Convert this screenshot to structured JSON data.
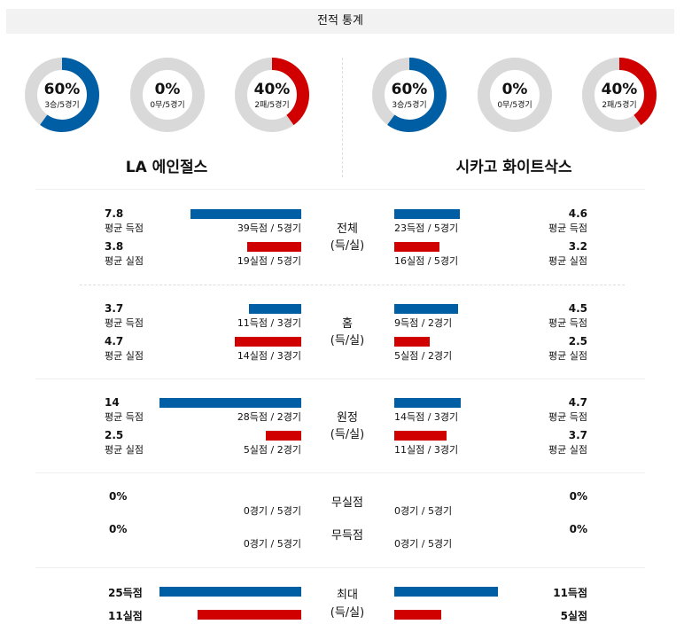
{
  "title": "전적 통계",
  "colors": {
    "score": "#005ea5",
    "concede": "#d00000",
    "track": "#d9d9d9"
  },
  "teams": [
    {
      "name": "LA 에인절스",
      "donuts": [
        {
          "pct": "60%",
          "sub": "3승/5경기",
          "value": 60,
          "color": "#005ea5"
        },
        {
          "pct": "0%",
          "sub": "0무/5경기",
          "value": 0,
          "color": "#005ea5"
        },
        {
          "pct": "40%",
          "sub": "2패/5경기",
          "value": 40,
          "color": "#d00000"
        }
      ]
    },
    {
      "name": "시카고 화이트삭스",
      "donuts": [
        {
          "pct": "60%",
          "sub": "3승/5경기",
          "value": 60,
          "color": "#005ea5"
        },
        {
          "pct": "0%",
          "sub": "0무/5경기",
          "value": 0,
          "color": "#005ea5"
        },
        {
          "pct": "40%",
          "sub": "2패/5경기",
          "value": 40,
          "color": "#d00000"
        }
      ]
    }
  ],
  "sections": [
    {
      "label1": "전체",
      "label2": "(득/실)",
      "rows": [
        {
          "left": {
            "val": "7.8",
            "lbl": "평균 득점",
            "cap": "39득점 / 5경기",
            "bar": 78
          },
          "right": {
            "val": "4.6",
            "lbl": "평균 득점",
            "cap": "23득점 / 5경기",
            "bar": 46
          },
          "type": "score"
        },
        {
          "left": {
            "val": "3.8",
            "lbl": "평균 실점",
            "cap": "19실점 / 5경기",
            "bar": 38
          },
          "right": {
            "val": "3.2",
            "lbl": "평균 실점",
            "cap": "16실점 / 5경기",
            "bar": 32
          },
          "type": "concede"
        }
      ]
    },
    {
      "label1": "홈",
      "label2": "(득/실)",
      "rows": [
        {
          "left": {
            "val": "3.7",
            "lbl": "평균 득점",
            "cap": "11득점 / 3경기",
            "bar": 37
          },
          "right": {
            "val": "4.5",
            "lbl": "평균 득점",
            "cap": "9득점 / 2경기",
            "bar": 45
          },
          "type": "score"
        },
        {
          "left": {
            "val": "4.7",
            "lbl": "평균 실점",
            "cap": "14실점 / 3경기",
            "bar": 47
          },
          "right": {
            "val": "2.5",
            "lbl": "평균 실점",
            "cap": "5실점 / 2경기",
            "bar": 25
          },
          "type": "concede"
        }
      ]
    },
    {
      "label1": "원정",
      "label2": "(득/실)",
      "rows": [
        {
          "left": {
            "val": "14",
            "lbl": "평균 득점",
            "cap": "28득점 / 2경기",
            "bar": 100
          },
          "right": {
            "val": "4.7",
            "lbl": "평균 득점",
            "cap": "14득점 / 3경기",
            "bar": 47
          },
          "type": "score"
        },
        {
          "left": {
            "val": "2.5",
            "lbl": "평균 실점",
            "cap": "5실점 / 2경기",
            "bar": 25
          },
          "right": {
            "val": "3.7",
            "lbl": "평균 실점",
            "cap": "11실점 / 3경기",
            "bar": 37
          },
          "type": "concede"
        }
      ]
    }
  ],
  "zero": [
    {
      "label": "무실점",
      "left": {
        "val": "0%",
        "cap": "0경기 / 5경기"
      },
      "right": {
        "val": "0%",
        "cap": "0경기 / 5경기"
      }
    },
    {
      "label": "무득점",
      "left": {
        "val": "0%",
        "cap": "0경기 / 5경기"
      },
      "right": {
        "val": "0%",
        "cap": "0경기 / 5경기"
      }
    }
  ],
  "max": {
    "label1": "최대",
    "label2": "(득/실)",
    "rows": [
      {
        "left": {
          "val": "25득점",
          "bar": 100
        },
        "right": {
          "val": "11득점",
          "bar": 73
        },
        "type": "score"
      },
      {
        "left": {
          "val": "11실점",
          "bar": 73
        },
        "right": {
          "val": "5실점",
          "bar": 33
        },
        "type": "concede"
      }
    ]
  }
}
